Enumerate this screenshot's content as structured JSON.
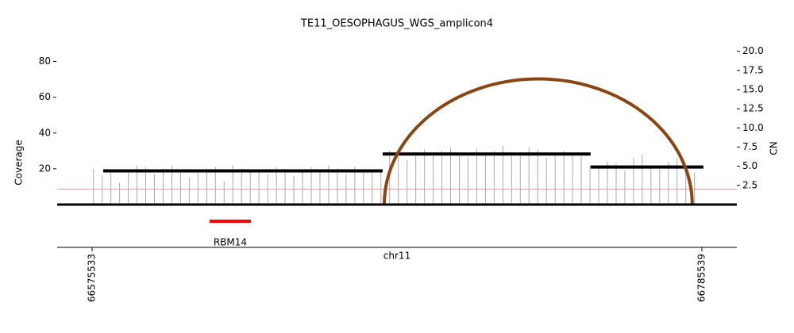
{
  "chart_data": {
    "type": "amplicon",
    "title": "TE11_OESOPHAGUS_WGS_amplicon4",
    "ylabel": "Coverage",
    "y2label": "CN",
    "xlabel": "chr11",
    "xlim": [
      66563503,
      66797569
    ],
    "xticks": [
      66575533,
      66785539
    ],
    "ylim": [
      0,
      90
    ],
    "yticks": [
      20,
      40,
      60,
      80
    ],
    "y2lim": [
      0,
      21
    ],
    "y2ticks": [
      2.5,
      {
        "value": 5,
        "label": "5.0"
      },
      7.5,
      {
        "value": 10,
        "label": "10.0"
      },
      12.5,
      {
        "value": 15,
        "label": "15.0"
      },
      17.5,
      {
        "value": 20,
        "label": "20.0"
      }
    ],
    "coverage": {
      "color": "#aaaaaa",
      "x": [
        66576000,
        66579000,
        66582000,
        66585000,
        66588000,
        66591000,
        66594000,
        66597000,
        66600000,
        66603000,
        66606000,
        66609000,
        66612000,
        66615000,
        66618000,
        66621000,
        66624000,
        66627000,
        66630000,
        66633000,
        66636000,
        66639000,
        66642000,
        66645000,
        66648000,
        66651000,
        66654000,
        66657000,
        66660000,
        66663000,
        66666000,
        66669000,
        66672000,
        66675000,
        66678000,
        66681000,
        66684000,
        66687000,
        66690000,
        66693000,
        66696000,
        66699000,
        66702000,
        66705000,
        66708000,
        66711000,
        66714000,
        66717000,
        66720000,
        66723000,
        66726000,
        66729000,
        66732000,
        66735000,
        66738000,
        66741000,
        66744000,
        66747000,
        66750000,
        66753000,
        66756000,
        66759000,
        66762000,
        66765000,
        66768000,
        66771000,
        66774000,
        66777000,
        66780000,
        66783000
      ],
      "values": [
        20,
        16,
        18,
        12,
        19,
        22,
        21,
        17,
        20,
        22,
        18,
        15,
        19,
        20,
        21,
        13,
        22,
        20,
        18,
        19,
        17,
        21,
        20,
        16,
        19,
        21,
        18,
        22,
        20,
        17,
        21,
        19,
        18,
        20,
        30,
        27,
        25,
        29,
        31,
        28,
        30,
        32,
        29,
        26,
        31,
        28,
        30,
        33,
        27,
        29,
        32,
        31,
        26,
        28,
        30,
        29,
        27,
        22,
        21,
        24,
        23,
        19,
        26,
        28,
        21,
        20,
        24,
        26,
        22,
        18
      ]
    },
    "segments": {
      "color": "#000000",
      "items": [
        {
          "start": 66579360,
          "end": 66675600,
          "cn": 4.4
        },
        {
          "start": 66675600,
          "end": 66747225,
          "cn": 6.6
        },
        {
          "start": 66747225,
          "end": 66786050,
          "cn": 4.9
        }
      ]
    },
    "baseline_cn": 2,
    "baseline_color": "#d9a0a0",
    "arcs": [
      {
        "start": 66676150,
        "end": 66782200,
        "height": 16.4,
        "color": "#8b4513"
      }
    ],
    "genes": [
      {
        "name": "RBM14",
        "start": 66616000,
        "end": 66630200,
        "color": "#ff0000"
      }
    ]
  }
}
